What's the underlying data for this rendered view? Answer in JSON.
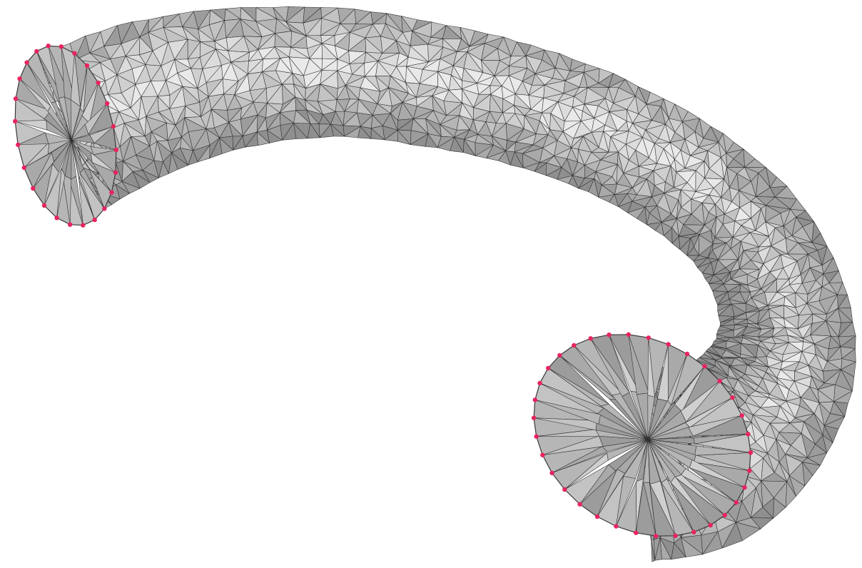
{
  "scene": {
    "background": "#ffffff",
    "surface_colors": [
      "#e9e9e9",
      "#dcdcdc",
      "#cfcfcf",
      "#c3c3c3",
      "#b6b6b6",
      "#a9a9a9",
      "#9c9c9c",
      "#8f8f8f"
    ],
    "edge_color": "#2e2e2e",
    "boundary_vertex_color": "#e8245f",
    "mesh_type": "triangulated-tube",
    "open_boundaries": 2
  }
}
